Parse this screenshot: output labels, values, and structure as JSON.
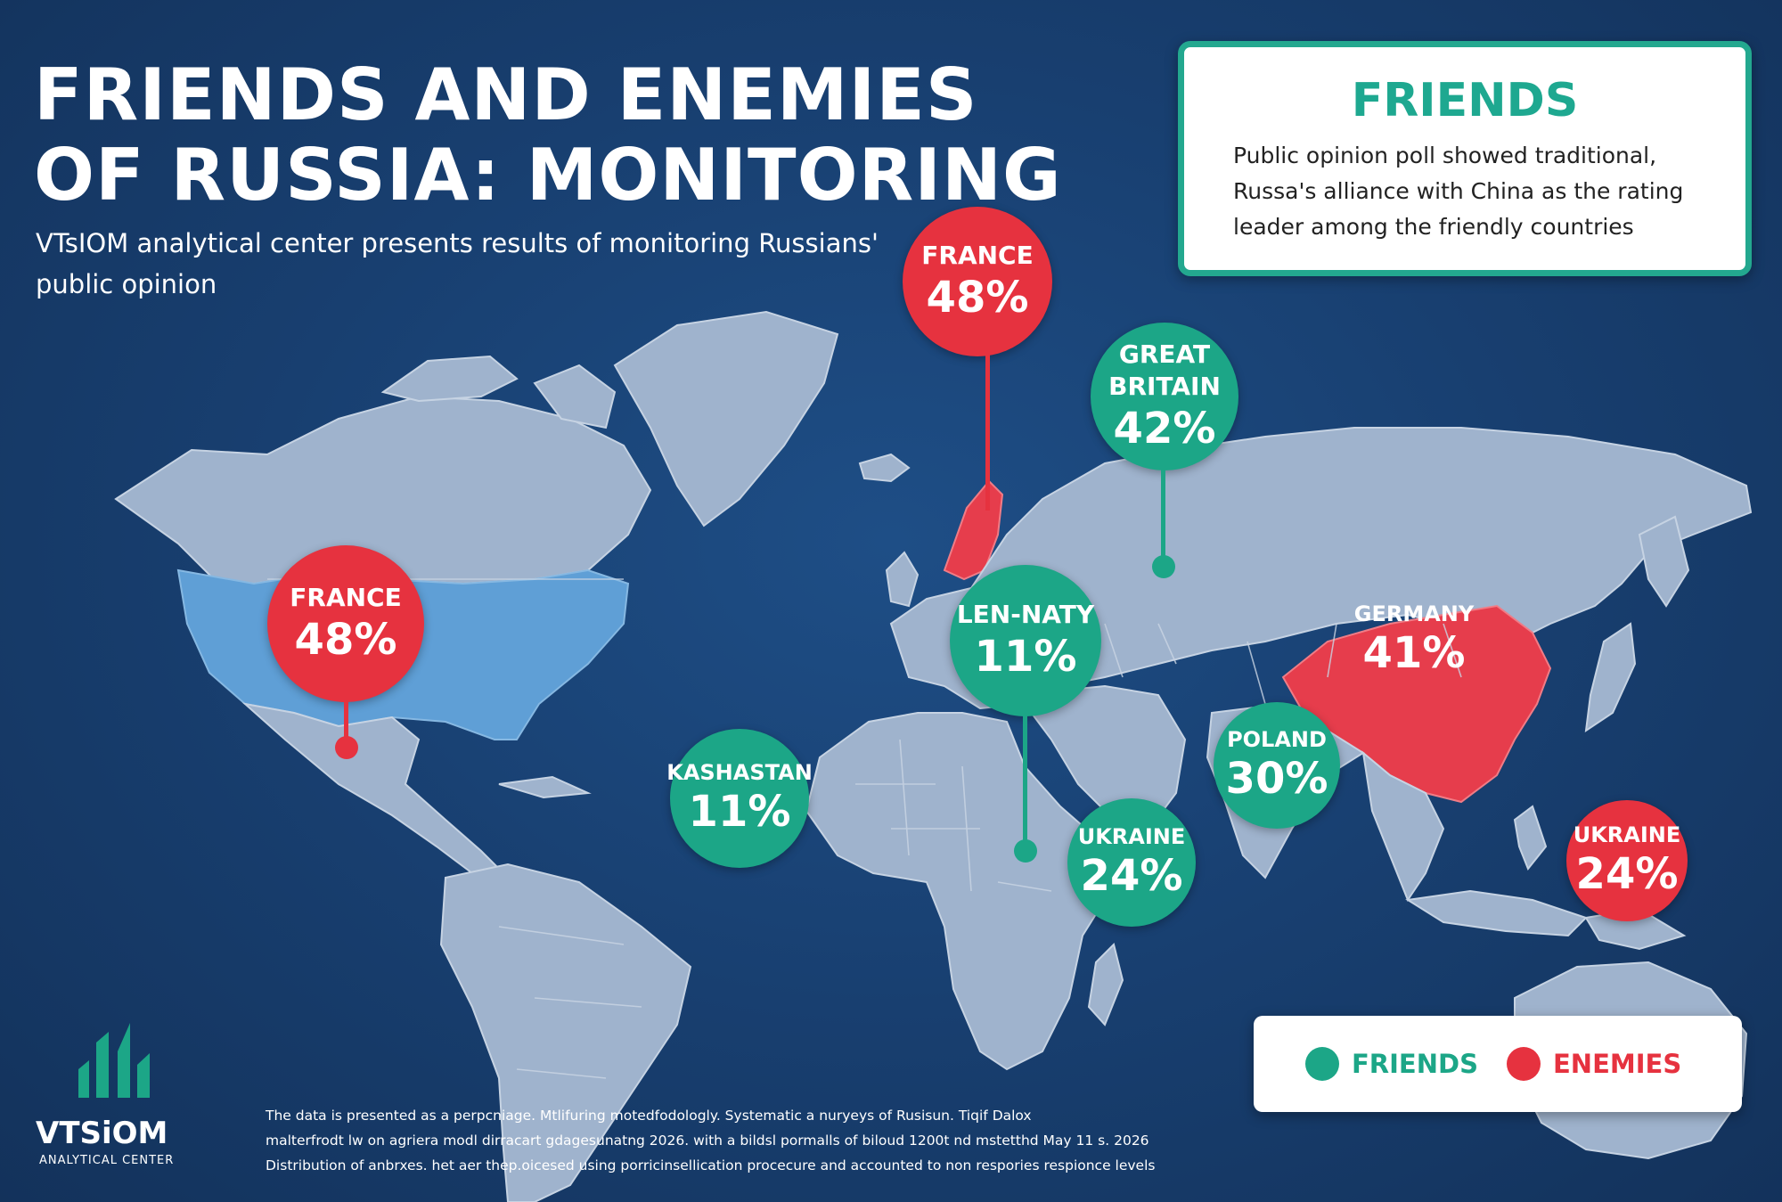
{
  "header": {
    "title_line1": "FRIENDS AND ENEMIES",
    "title_line2": "OF RUSSIA: MONITORING",
    "subtitle": "VTsIOM analytical center presents results of monitoring Russians' public opinion"
  },
  "infobox": {
    "title": "FRIENDS",
    "text": "Public opinion poll showed traditional, Russa's alliance with China as the rating leader among the friendly countries"
  },
  "markers": [
    {
      "country_label": "FRANCE",
      "value": "48%",
      "category": "enemy"
    },
    {
      "country_label": "GREAT BRITAIN",
      "value": "42%",
      "category": "friend"
    },
    {
      "country_label": "FRANCE",
      "value": "48%",
      "category": "enemy"
    },
    {
      "country_label": "LEN-NATY",
      "value": "11%",
      "category": "friend"
    },
    {
      "country_label": "GERMANY",
      "value": "41%",
      "category": "enemy"
    },
    {
      "country_label": "POLAND",
      "value": "30%",
      "category": "friend"
    },
    {
      "country_label": "KASHASTAN",
      "value": "11%",
      "category": "friend"
    },
    {
      "country_label": "UKRAINE",
      "value": "24%",
      "category": "friend"
    },
    {
      "country_label": "UKRAINE",
      "value": "24%",
      "category": "enemy"
    }
  ],
  "legend": {
    "friends_label": "FRIENDS",
    "enemies_label": "ENEMIES"
  },
  "colors": {
    "friend": "#1ca687",
    "enemy": "#e6323f",
    "highlight_blue": "#5f9fd6",
    "land": "#9fb3cd",
    "ocean": "#183f70"
  },
  "logo": {
    "name": "VTSiOM",
    "tagline": "ANALYTICAL CENTER",
    "icon": "bar-chart-logo-icon"
  },
  "methodology": [
    "The data is presented as a perpcniage. Mtlifuring motedfodologly. Systematic a nuryeys of Rusisun. Tiqif Dalox",
    "malterfrodt lw on agriera modl dirracart gdagesunatng 2026. with a bildsl pormalls of biloud 1200t nd mstetthd May 11 s. 2026",
    "Distribution of anbrxes. het aer thep.oicesed using porricinsellication procecure and accounted to non respories respionce levels"
  ]
}
